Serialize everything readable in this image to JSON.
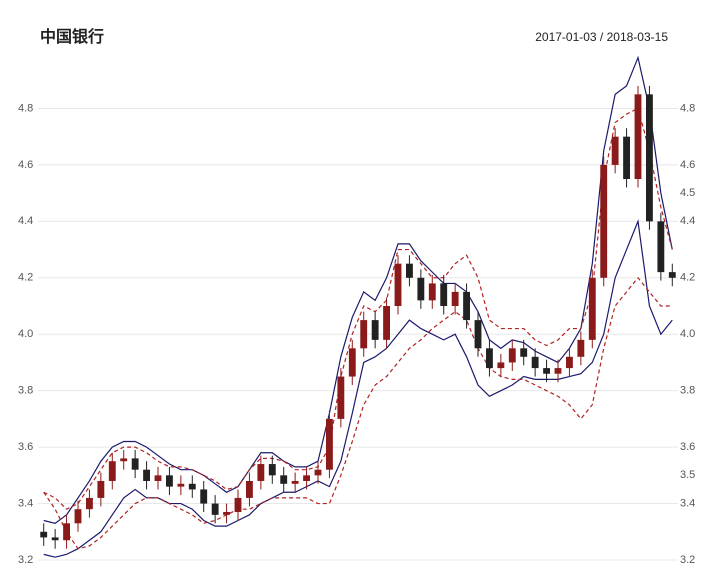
{
  "chart_data": {
    "type": "candlestick",
    "title": "中国银行",
    "date_range": "2017-01-03 / 2018-03-15",
    "open": [
      3.3,
      3.28,
      3.27,
      3.33,
      3.38,
      3.42,
      3.48,
      3.55,
      3.56,
      3.52,
      3.48,
      3.5,
      3.46,
      3.47,
      3.45,
      3.4,
      3.36,
      3.37,
      3.42,
      3.48,
      3.54,
      3.5,
      3.47,
      3.48,
      3.5,
      3.52,
      3.7,
      3.85,
      3.95,
      4.05,
      3.98,
      4.1,
      4.25,
      4.2,
      4.12,
      4.18,
      4.1,
      4.15,
      4.05,
      3.95,
      3.88,
      3.9,
      3.95,
      3.92,
      3.88,
      3.86,
      3.88,
      3.92,
      3.98,
      4.2,
      4.6,
      4.7,
      4.55,
      4.85,
      4.4,
      4.22
    ],
    "high": [
      3.33,
      3.31,
      3.36,
      3.41,
      3.45,
      3.51,
      3.58,
      3.59,
      3.59,
      3.55,
      3.53,
      3.53,
      3.5,
      3.5,
      3.48,
      3.43,
      3.4,
      3.45,
      3.51,
      3.57,
      3.57,
      3.53,
      3.51,
      3.53,
      3.55,
      3.73,
      3.88,
      3.98,
      4.08,
      4.08,
      4.13,
      4.28,
      4.28,
      4.23,
      4.21,
      4.21,
      4.18,
      4.18,
      4.08,
      3.98,
      3.93,
      3.98,
      3.98,
      3.95,
      3.91,
      3.91,
      3.95,
      4.01,
      4.23,
      4.63,
      4.73,
      4.73,
      4.88,
      4.88,
      4.43,
      4.25
    ],
    "low": [
      3.25,
      3.24,
      3.24,
      3.3,
      3.35,
      3.39,
      3.45,
      3.52,
      3.49,
      3.45,
      3.45,
      3.43,
      3.43,
      3.42,
      3.37,
      3.33,
      3.33,
      3.34,
      3.39,
      3.45,
      3.47,
      3.44,
      3.44,
      3.45,
      3.47,
      3.49,
      3.67,
      3.82,
      3.92,
      3.95,
      3.95,
      4.07,
      4.17,
      4.09,
      4.09,
      4.07,
      4.07,
      4.02,
      3.92,
      3.85,
      3.85,
      3.87,
      3.89,
      3.85,
      3.83,
      3.83,
      3.85,
      3.89,
      3.95,
      4.17,
      4.57,
      4.52,
      4.52,
      4.37,
      4.19,
      4.17
    ],
    "close": [
      3.28,
      3.27,
      3.33,
      3.38,
      3.42,
      3.48,
      3.55,
      3.56,
      3.52,
      3.48,
      3.5,
      3.46,
      3.47,
      3.45,
      3.4,
      3.36,
      3.37,
      3.42,
      3.48,
      3.54,
      3.5,
      3.47,
      3.48,
      3.5,
      3.52,
      3.7,
      3.85,
      3.95,
      4.05,
      3.98,
      4.1,
      4.25,
      4.2,
      4.12,
      4.18,
      4.1,
      4.15,
      4.05,
      3.95,
      3.88,
      3.9,
      3.95,
      3.92,
      3.88,
      3.86,
      3.88,
      3.92,
      3.98,
      4.2,
      4.6,
      4.7,
      4.55,
      4.85,
      4.4,
      4.22,
      4.2
    ],
    "up_color": "#8b1a1a",
    "down_color": "#222222",
    "series": [
      {
        "color": "#1a1a6e",
        "dashed": false,
        "values": [
          3.34,
          3.33,
          3.36,
          3.42,
          3.48,
          3.55,
          3.6,
          3.62,
          3.62,
          3.6,
          3.57,
          3.54,
          3.52,
          3.52,
          3.5,
          3.47,
          3.44,
          3.46,
          3.52,
          3.58,
          3.58,
          3.55,
          3.53,
          3.53,
          3.55,
          3.72,
          3.92,
          4.06,
          4.15,
          4.12,
          4.2,
          4.32,
          4.32,
          4.26,
          4.22,
          4.18,
          4.18,
          4.15,
          4.08,
          3.98,
          3.95,
          3.98,
          3.97,
          3.94,
          3.92,
          3.9,
          3.95,
          4.02,
          4.25,
          4.65,
          4.85,
          4.88,
          4.98,
          4.8,
          4.5,
          4.3
        ]
      },
      {
        "color": "#1a1a6e",
        "dashed": false,
        "values": [
          3.22,
          3.21,
          3.22,
          3.24,
          3.27,
          3.3,
          3.36,
          3.42,
          3.45,
          3.42,
          3.42,
          3.4,
          3.4,
          3.38,
          3.34,
          3.32,
          3.32,
          3.34,
          3.36,
          3.4,
          3.42,
          3.44,
          3.44,
          3.46,
          3.48,
          3.46,
          3.55,
          3.72,
          3.9,
          3.92,
          3.95,
          4.0,
          4.05,
          4.02,
          4.0,
          3.98,
          4.0,
          3.92,
          3.82,
          3.78,
          3.8,
          3.82,
          3.85,
          3.84,
          3.84,
          3.84,
          3.85,
          3.86,
          3.9,
          4.0,
          4.2,
          4.3,
          4.4,
          4.1,
          4.0,
          4.05
        ]
      },
      {
        "color": "#b22222",
        "dashed": true,
        "values": [
          3.44,
          3.42,
          3.38,
          3.4,
          3.46,
          3.52,
          3.58,
          3.6,
          3.6,
          3.58,
          3.55,
          3.53,
          3.53,
          3.52,
          3.5,
          3.48,
          3.45,
          3.46,
          3.52,
          3.56,
          3.56,
          3.55,
          3.52,
          3.52,
          3.53,
          3.6,
          3.85,
          4.0,
          4.1,
          4.08,
          4.12,
          4.3,
          4.3,
          4.25,
          4.2,
          4.2,
          4.25,
          4.28,
          4.2,
          4.05,
          4.02,
          4.02,
          4.02,
          3.98,
          3.96,
          3.98,
          4.02,
          4.02,
          4.15,
          4.55,
          4.75,
          4.78,
          4.8,
          4.65,
          4.45,
          4.3
        ]
      },
      {
        "color": "#b22222",
        "dashed": true,
        "values": [
          3.44,
          3.38,
          3.3,
          3.24,
          3.25,
          3.28,
          3.32,
          3.36,
          3.4,
          3.42,
          3.42,
          3.4,
          3.38,
          3.36,
          3.33,
          3.34,
          3.36,
          3.38,
          3.38,
          3.4,
          3.42,
          3.42,
          3.42,
          3.42,
          3.4,
          3.4,
          3.5,
          3.62,
          3.75,
          3.82,
          3.85,
          3.9,
          3.95,
          3.98,
          4.02,
          4.05,
          4.08,
          4.05,
          3.95,
          3.88,
          3.85,
          3.84,
          3.84,
          3.82,
          3.8,
          3.78,
          3.75,
          3.7,
          3.75,
          3.95,
          4.1,
          4.15,
          4.2,
          4.15,
          4.1,
          4.1
        ]
      }
    ],
    "ylim": [
      3.2,
      5.0
    ],
    "yticks": [
      3.2,
      3.4,
      3.6,
      3.8,
      {
        "value": 4,
        "label": "4.0"
      },
      4.2,
      4.4,
      4.6,
      4.8
    ],
    "y2lim": [
      3.2,
      5.0
    ],
    "y2ticks": [
      3.2,
      3.4,
      3.5,
      3.6,
      3.8,
      {
        "value": 4,
        "label": "4.0"
      },
      4.2,
      4.4,
      4.5,
      4.6,
      4.8
    ],
    "grid": true
  }
}
